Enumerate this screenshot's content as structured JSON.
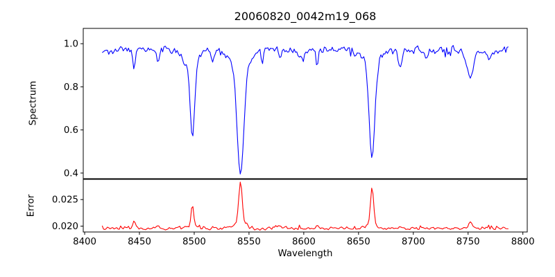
{
  "title": "20060820_0042m19_068",
  "axes": {
    "xlabel": "Wavelength",
    "x_ticks": [
      {
        "value": 8400,
        "label": "8400"
      },
      {
        "value": 8450,
        "label": "8450"
      },
      {
        "value": 8500,
        "label": "8500"
      },
      {
        "value": 8550,
        "label": "8550"
      },
      {
        "value": 8600,
        "label": "8600"
      },
      {
        "value": 8650,
        "label": "8650"
      },
      {
        "value": 8700,
        "label": "8700"
      },
      {
        "value": 8750,
        "label": "8750"
      },
      {
        "value": 8800,
        "label": "8800"
      }
    ]
  },
  "panels": {
    "spectrum": {
      "ylabel": "Spectrum"
    },
    "error": {
      "ylabel": "Error"
    }
  },
  "chart_data": [
    {
      "name": "spectrum",
      "type": "line",
      "color": "#0000ff",
      "xlim": [
        8398.7,
        8804.0
      ],
      "x_start": 8416,
      "x_end": 8787,
      "x_step": 1.2,
      "ylim": [
        0.374,
        1.071
      ],
      "yticks": [
        {
          "value": 0.4,
          "label": "0.4"
        },
        {
          "value": 0.6,
          "label": "0.6"
        },
        {
          "value": 0.8,
          "label": "0.8"
        },
        {
          "value": 1.0,
          "label": "1.0"
        }
      ],
      "base_level": 0.972,
      "feature_sign": -1,
      "noise_sigma": 0.012,
      "spike_prob": 0.045,
      "spike_amp": 0.04,
      "seed": 13,
      "features": [
        [
          8445.0,
          0.08,
          1.2
        ],
        [
          8467.0,
          0.045,
          1.3
        ],
        [
          8491.0,
          0.05,
          1.3
        ],
        [
          8498.3,
          0.345,
          2.0
        ],
        [
          8498.3,
          0.06,
          6.0
        ],
        [
          8517.0,
          0.045,
          1.5
        ],
        [
          8542.2,
          0.5,
          3.0
        ],
        [
          8542.2,
          0.08,
          8.0
        ],
        [
          8562.0,
          0.07,
          0.9
        ],
        [
          8578.0,
          0.04,
          1.4
        ],
        [
          8597.0,
          0.04,
          3.0
        ],
        [
          8612.0,
          0.075,
          0.9
        ],
        [
          8662.3,
          0.43,
          2.5
        ],
        [
          8662.3,
          0.07,
          7.0
        ],
        [
          8688.0,
          0.07,
          1.8
        ],
        [
          8713.0,
          0.035,
          1.5
        ],
        [
          8752.0,
          0.1,
          2.5
        ],
        [
          8752.0,
          0.03,
          7.0
        ],
        [
          8770.0,
          0.035,
          2.0
        ]
      ],
      "key_points": {
        "continuum_level": 0.97,
        "absorption_minima": [
          {
            "wavelength": 8498,
            "flux": 0.58
          },
          {
            "wavelength": 8542,
            "flux": 0.4
          },
          {
            "wavelength": 8662,
            "flux": 0.48
          }
        ]
      }
    },
    {
      "name": "error",
      "type": "line",
      "color": "#ff0000",
      "xlim": [
        8398.7,
        8804.0
      ],
      "x_start": 8416,
      "x_end": 8787,
      "x_step": 1.2,
      "ylim": [
        0.0189,
        0.0288
      ],
      "yticks": [
        {
          "value": 0.02,
          "label": "0.020"
        },
        {
          "value": 0.025,
          "label": "0.025"
        }
      ],
      "base_level": 0.0196,
      "feature_sign": 1,
      "noise_sigma": 0.00021,
      "spike_prob": 0.05,
      "spike_amp": 0.0005,
      "seed": 99,
      "features": [
        [
          8445.0,
          0.0013,
          1.2
        ],
        [
          8467.0,
          0.0005,
          1.2
        ],
        [
          8498.3,
          0.004,
          1.1
        ],
        [
          8498.3,
          0.0006,
          3.0
        ],
        [
          8517.0,
          0.0004,
          1.3
        ],
        [
          8542.2,
          0.008,
          1.6
        ],
        [
          8542.2,
          0.001,
          4.5
        ],
        [
          8578.0,
          0.0004,
          1.5
        ],
        [
          8612.0,
          0.0005,
          1.0
        ],
        [
          8662.3,
          0.007,
          1.4
        ],
        [
          8662.3,
          0.0008,
          4.0
        ],
        [
          8688.0,
          0.0005,
          1.5
        ],
        [
          8752.0,
          0.0012,
          1.8
        ]
      ],
      "key_points": {
        "baseline_level": 0.0196,
        "peaks": [
          {
            "wavelength": 8498,
            "value": 0.0245
          },
          {
            "wavelength": 8542,
            "value": 0.0286
          },
          {
            "wavelength": 8662,
            "value": 0.0274
          }
        ]
      }
    }
  ]
}
